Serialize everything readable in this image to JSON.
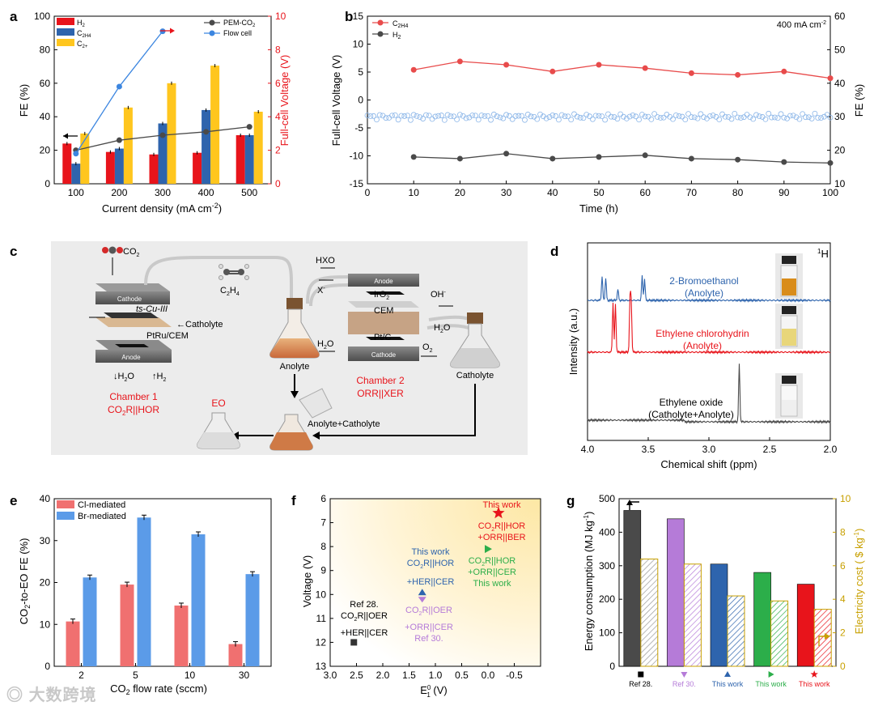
{
  "panels": {
    "a": {
      "label": "a",
      "xlabel": "Current density (mA cm",
      "xlabel_sup": "-2",
      "xlabel_end": ")",
      "ylabel": "FE (%)",
      "y2label": "Full-cell Voltage (V)",
      "legend_bars": [
        "H",
        "C",
        "C"
      ],
      "legend_bar_subs": [
        "2",
        "2H4",
        "2+"
      ],
      "legend_lines": [
        "PEM-CO",
        "Flow cell"
      ],
      "legend_line_subs": [
        "2",
        ""
      ]
    },
    "b": {
      "label": "b",
      "xlabel": "Time (h)",
      "ylabel": "Full-cell Voltage (V)",
      "y2label": "FE (%)",
      "legend": [
        "C",
        "H"
      ],
      "legend_subs": [
        "2H4",
        "2"
      ],
      "annotation": "400 mA cm",
      "annotation_sup": "-2"
    },
    "c": {
      "label": "c",
      "co2": "CO",
      "cathode": "Cathode",
      "ts_cu": "ts-Cu-III",
      "catholyte_arrow": "Catholyte",
      "ptru": "PtRu/CEM",
      "anode": "Anode",
      "h2o": "H",
      "h2": "H",
      "chamber1_title": "Chamber 1",
      "chamber1_sub": "CO",
      "chamber1_sub_end": "R||HOR",
      "c2h4": "C",
      "anolyte": "Anolyte",
      "hxo": "HXO",
      "x_minus": "X",
      "anode2": "Anode",
      "iro2": "IrO",
      "cem": "CEM",
      "ptc": "Pt/C",
      "cathode2": "Cathode",
      "oh": "OH",
      "h2o_2": "H",
      "o2": "O",
      "h2o_3": "H",
      "chamber2_title": "Chamber 2",
      "chamber2_sub": "ORR||XER",
      "catholyte": "Catholyte",
      "eo": "EO",
      "mix": "Anolyte+Catholyte"
    },
    "d": {
      "label": "d",
      "nucleus": "H",
      "nucleus_sup": "1",
      "ylabel": "Intensity (a.u.)",
      "xlabel": "Chemical shift (ppm)",
      "s1": [
        "2-Bromoethanol",
        "(Anolyte)"
      ],
      "s2": [
        "Ethylene chlorohydrin",
        "(Anolyte)"
      ],
      "s3": [
        "Ethylene oxide",
        "(Catholyte+Anolyte)"
      ]
    },
    "e": {
      "label": "e",
      "ylabel": "CO",
      "ylabel_end": "-to-EO FE (%)",
      "xlabel": "CO",
      "xlabel_end": " flow rate (sccm)",
      "legend": [
        "Cl-mediated",
        "Br-mediated"
      ]
    },
    "f": {
      "label": "f",
      "ylabel": "Voltage (V)",
      "xlabel": "E",
      "xlabel_sub": "1",
      "xlabel_sup": "0",
      "xlabel_end": " (V)",
      "pts": {
        "red": [
          "This work",
          "CO",
          "R||HOR",
          "+ORR||BER"
        ],
        "green": [
          "CO",
          "R||HOR",
          "+ORR||CER",
          "This work"
        ],
        "blue": [
          "This work",
          "CO",
          "R||HOR",
          "+HER||CER"
        ],
        "purple": [
          "CO",
          "R||OER",
          "+ORR||CER",
          "Ref 30."
        ],
        "black": [
          "Ref 28.",
          "CO",
          "R||OER",
          "+HER||CER"
        ]
      }
    },
    "g": {
      "label": "g",
      "ylabel": "Energy consumption (MJ kg",
      "ylabel_sup": "-1",
      "ylabel_end": ")",
      "y2label": "Electricity cost ( $ kg",
      "y2label_sup": "-1",
      "y2label_end": ")",
      "cats": [
        "Ref 28.",
        "Ref 30.",
        "This work",
        "This work",
        "This work"
      ]
    }
  },
  "watermark": "大数跨境",
  "colors": {
    "red": "#e8141b",
    "blue": "#2e64ad",
    "yellow": "#ffc61e",
    "line_blue": "#3c86e0",
    "salmon": "#f07070",
    "sky": "#5b9be8",
    "purple": "#b57bd8",
    "green": "#2cae4a",
    "dark": "#4a4a4a",
    "gold": "#c8a000"
  },
  "chart_data": [
    {
      "panel": "a",
      "type": "bar",
      "categories": [
        "100",
        "200",
        "300",
        "400",
        "500"
      ],
      "xlabel": "Current density (mA cm-2)",
      "ylabel": "FE (%)",
      "ylim": [
        0,
        100
      ],
      "yticks": [
        0,
        20,
        40,
        60,
        80,
        100
      ],
      "y2label": "Full-cell Voltage (V)",
      "y2lim": [
        0,
        10
      ],
      "y2ticks": [
        0,
        2,
        4,
        6,
        8,
        10
      ],
      "series": [
        {
          "name": "H2",
          "values": [
            24,
            19,
            17.5,
            18.5,
            29
          ]
        },
        {
          "name": "C2H4",
          "values": [
            12,
            21,
            36,
            44,
            29
          ]
        },
        {
          "name": "C2+",
          "values": [
            30,
            45.5,
            60,
            70.5,
            43
          ]
        }
      ],
      "lines": [
        {
          "name": "PEM-CO2",
          "axis": "right",
          "values": [
            2.0,
            2.6,
            2.9,
            3.1,
            3.4
          ]
        },
        {
          "name": "Flow cell",
          "axis": "right",
          "values": [
            1.8,
            5.8,
            9.1
          ]
        }
      ]
    },
    {
      "panel": "b",
      "type": "line",
      "xlabel": "Time (h)",
      "xlim": [
        0,
        100
      ],
      "xticks": [
        0,
        10,
        20,
        30,
        40,
        50,
        60,
        70,
        80,
        90,
        100
      ],
      "ylabel": "Full-cell Voltage (V)",
      "ylim": [
        -15,
        15
      ],
      "yticks": [
        -15,
        -10,
        -5,
        0,
        5,
        10,
        15
      ],
      "y2label": "FE (%)",
      "y2lim": [
        10,
        60
      ],
      "y2ticks": [
        10,
        20,
        30,
        40,
        50,
        60
      ],
      "series": [
        {
          "name": "C2H4",
          "axis": "right",
          "x": [
            10,
            20,
            30,
            40,
            50,
            60,
            70,
            80,
            90,
            100
          ],
          "values": [
            44,
            46.5,
            45.5,
            43.5,
            45.5,
            44.5,
            43,
            42.5,
            43.5,
            41.5
          ]
        },
        {
          "name": "H2",
          "axis": "right",
          "x": [
            10,
            20,
            30,
            40,
            50,
            60,
            70,
            80,
            90,
            100
          ],
          "values": [
            18,
            17.5,
            19,
            17.5,
            18,
            18.5,
            17.5,
            17.2,
            16.5,
            16.2
          ]
        },
        {
          "name": "",
          "axis": "left",
          "style": "open-circles",
          "x_range": [
            0,
            100
          ],
          "value_mean": -3.0
        }
      ]
    },
    {
      "panel": "d",
      "type": "line",
      "xlabel": "Chemical shift (ppm)",
      "xlim": [
        4.0,
        2.0
      ],
      "xticks": [
        4.0,
        3.5,
        3.0,
        2.5,
        2.0
      ],
      "series": [
        {
          "name": "2-Bromoethanol (Anolyte)",
          "peaks_ppm": [
            3.88,
            3.85,
            3.75,
            3.55,
            3.53
          ]
        },
        {
          "name": "Ethylene chlorohydrin (Anolyte)",
          "peaks_ppm": [
            3.79,
            3.77,
            3.65,
            3.64
          ]
        },
        {
          "name": "Ethylene oxide (Catholyte+Anolyte)",
          "peaks_ppm": [
            2.75
          ]
        }
      ]
    },
    {
      "panel": "e",
      "type": "bar",
      "categories": [
        "2",
        "5",
        "10",
        "30"
      ],
      "xlabel": "CO2 flow rate (sccm)",
      "ylabel": "CO2-to-EO FE (%)",
      "ylim": [
        0,
        40
      ],
      "yticks": [
        0,
        10,
        20,
        30,
        40
      ],
      "series": [
        {
          "name": "Cl-mediated",
          "values": [
            10.7,
            19.5,
            14.5,
            5.3
          ]
        },
        {
          "name": "Br-mediated",
          "values": [
            21.2,
            35.5,
            31.5,
            22.0
          ]
        }
      ]
    },
    {
      "panel": "f",
      "type": "scatter",
      "xlabel": "E0_1 (V)",
      "xlim": [
        3.0,
        -1.0
      ],
      "xticks": [
        3.0,
        2.5,
        2.0,
        1.5,
        1.0,
        0.5,
        0.0,
        -0.5
      ],
      "ylabel": "Voltage (V)",
      "ylim": [
        13,
        6
      ],
      "yticks": [
        6,
        7,
        8,
        9,
        10,
        11,
        12,
        13
      ],
      "points": [
        {
          "label": "This work CO2R||HOR+ORR||BER",
          "x": -0.2,
          "y": 6.6
        },
        {
          "label": "CO2R||HOR+ORR||CER This work",
          "x": 0.0,
          "y": 8.1
        },
        {
          "label": "This work CO2R||HOR+HER||CER",
          "x": 1.25,
          "y": 10.0
        },
        {
          "label": "CO2R||OER+ORR||CER Ref 30.",
          "x": 1.25,
          "y": 10.1
        },
        {
          "label": "Ref 28. CO2R||OER+HER||CER",
          "x": 2.55,
          "y": 12.0
        }
      ]
    },
    {
      "panel": "g",
      "type": "bar",
      "categories": [
        "Ref 28.",
        "Ref 30.",
        "This work",
        "This work",
        "This work"
      ],
      "ylabel": "Energy consumption (MJ kg-1)",
      "ylim": [
        0,
        500
      ],
      "yticks": [
        0,
        100,
        200,
        300,
        400,
        500
      ],
      "y2label": "Electricity cost ($ kg-1)",
      "y2lim": [
        0,
        10
      ],
      "y2ticks": [
        0,
        2,
        4,
        6,
        8,
        10
      ],
      "series": [
        {
          "name": "Energy consumption",
          "values": [
            465,
            440,
            305,
            280,
            245
          ]
        },
        {
          "name": "Electricity cost",
          "values": [
            6.4,
            6.1,
            4.2,
            3.9,
            3.4
          ]
        }
      ]
    }
  ]
}
